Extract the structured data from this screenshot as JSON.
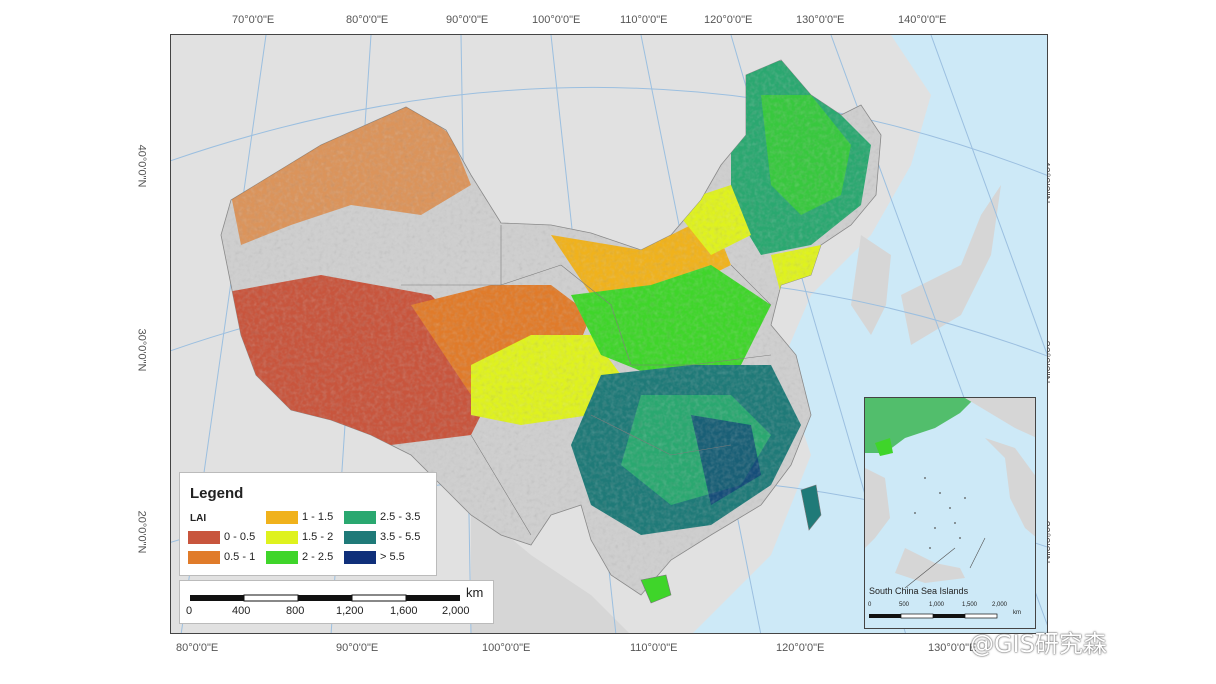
{
  "map": {
    "top_lon_labels": [
      "70°0'0\"E",
      "80°0'0\"E",
      "90°0'0\"E",
      "100°0'0\"E",
      "110°0'0\"E",
      "120°0'0\"E",
      "130°0'0\"E",
      "140°0'0\"E"
    ],
    "bottom_lon_labels": [
      "80°0'0\"E",
      "90°0'0\"E",
      "100°0'0\"E",
      "110°0'0\"E",
      "120°0'0\"E",
      "130°0'0\"E"
    ],
    "left_lat_labels": [
      "40°0'0\"N",
      "30°0'0\"N",
      "20°0'0\"N"
    ],
    "right_lat_labels": [
      "40°0'0\"N",
      "30°0'0\"N",
      "20°0'0\"N"
    ],
    "colors": {
      "sea": "#cde9f7",
      "land_other": "#d2d2d2",
      "graticule": "#9bbfe0"
    }
  },
  "legend": {
    "title": "Legend",
    "variable": "LAI",
    "items": [
      {
        "label": "0 - 0.5",
        "color": "#c8553d"
      },
      {
        "label": "0.5 - 1",
        "color": "#e07b2a"
      },
      {
        "label": "1 - 1.5",
        "color": "#f0b21c"
      },
      {
        "label": "1.5 - 2",
        "color": "#dff21e"
      },
      {
        "label": "2 - 2.5",
        "color": "#3fd52a"
      },
      {
        "label": "2.5 - 3.5",
        "color": "#2aa870"
      },
      {
        "label": "3.5 - 5.5",
        "color": "#1f7a78"
      },
      {
        "label": "> 5.5",
        "color": "#0f2f7a"
      }
    ]
  },
  "scale": {
    "unit": "km",
    "ticks": [
      "0",
      "400",
      "800",
      "1,200",
      "1,600",
      "2,000"
    ]
  },
  "inset": {
    "title": "South China Sea Islands",
    "ticks": [
      "0",
      "500",
      "1,000",
      "1,500",
      "2,000"
    ],
    "unit": "km"
  },
  "watermark": "@GIS研究森"
}
